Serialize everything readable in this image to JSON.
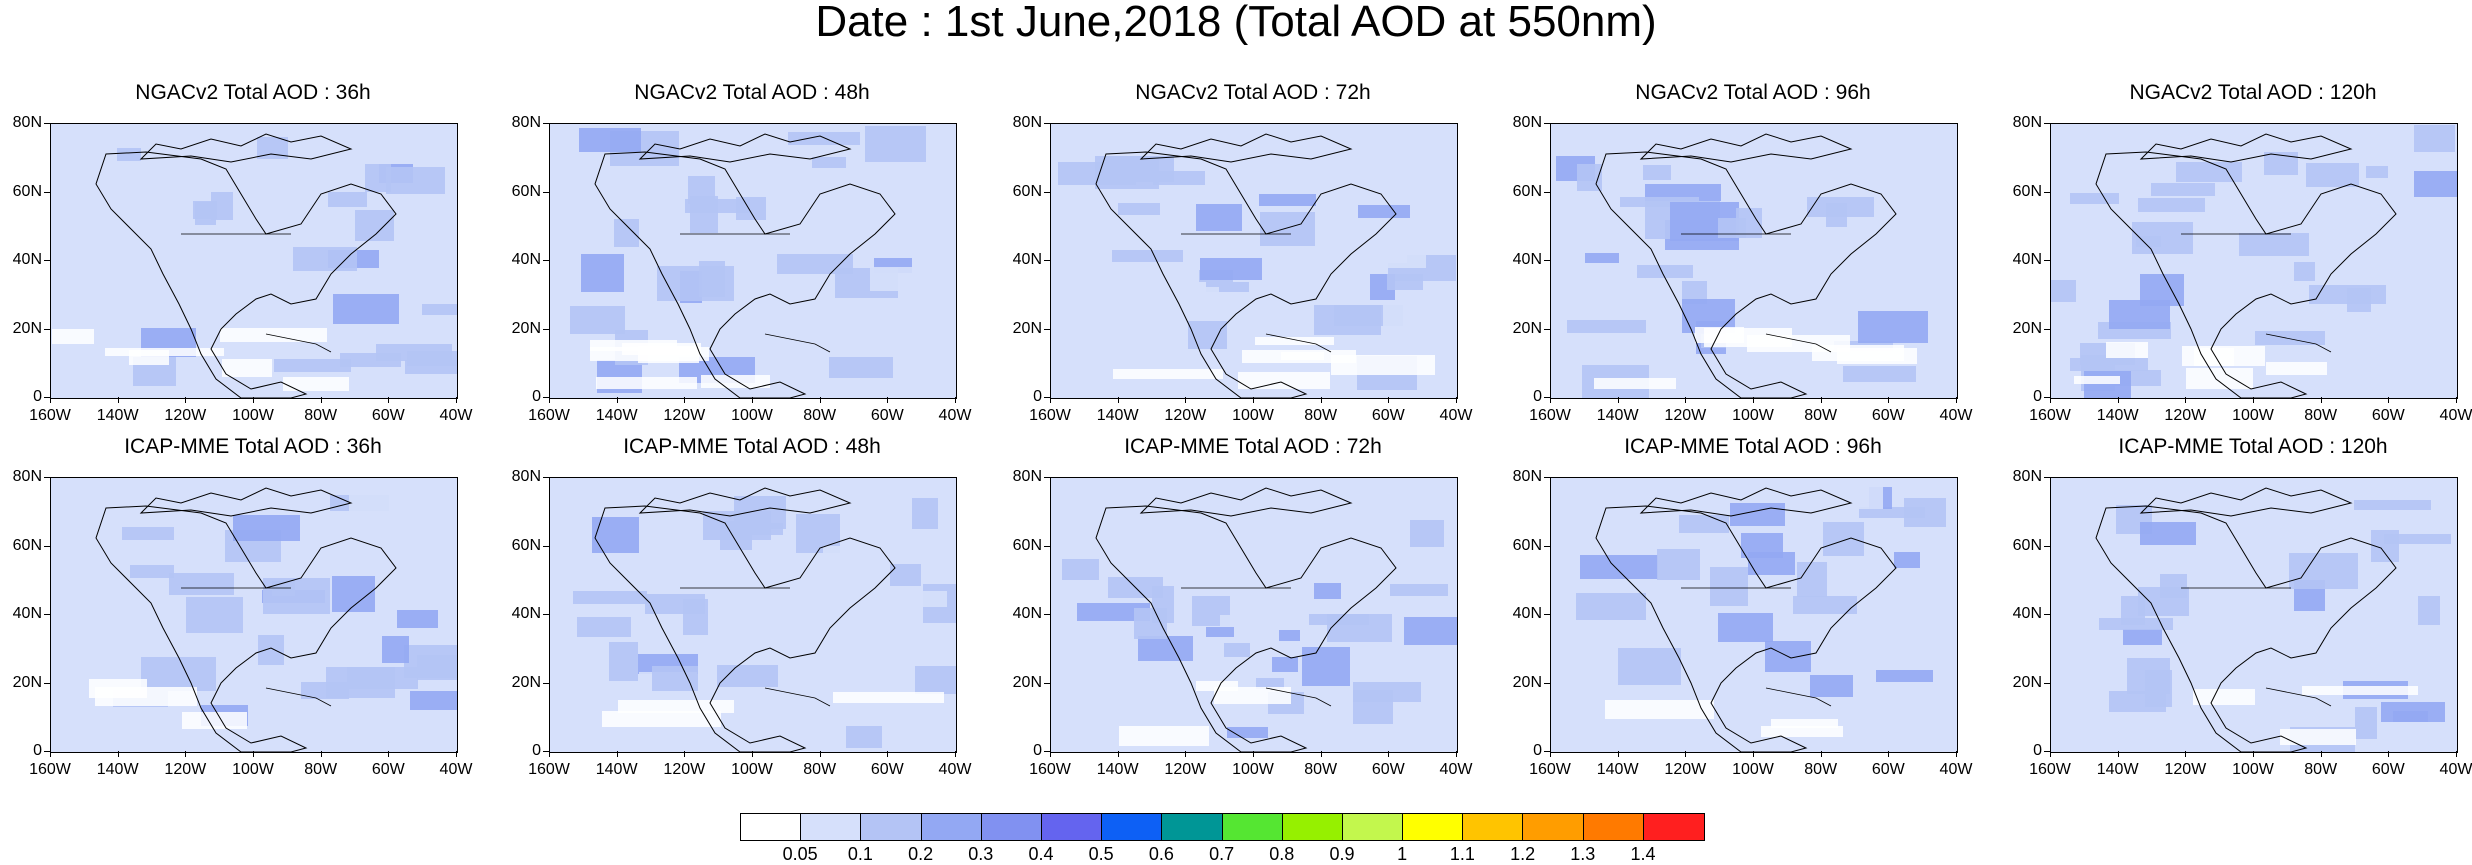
{
  "title": "Date : 1st June,2018 (Total AOD at 550nm)",
  "panels": [
    {
      "title": "NGACv2 Total AOD : 36h"
    },
    {
      "title": "NGACv2 Total AOD : 48h"
    },
    {
      "title": "NGACv2 Total AOD : 72h"
    },
    {
      "title": "NGACv2 Total AOD : 96h"
    },
    {
      "title": "NGACv2 Total AOD : 120h"
    },
    {
      "title": "ICAP-MME Total AOD : 36h"
    },
    {
      "title": "ICAP-MME Total AOD : 48h"
    },
    {
      "title": "ICAP-MME Total AOD : 72h"
    },
    {
      "title": "ICAP-MME Total AOD : 96h"
    },
    {
      "title": "ICAP-MME Total AOD : 120h"
    }
  ],
  "axes": {
    "lat_labels": [
      "80N",
      "60N",
      "40N",
      "20N",
      "0"
    ],
    "lon_labels": [
      "160W",
      "140W",
      "120W",
      "100W",
      "80W",
      "60W",
      "40W"
    ]
  },
  "colorbar": {
    "labels": [
      "0.05",
      "0.1",
      "0.2",
      "0.3",
      "0.4",
      "0.5",
      "0.6",
      "0.7",
      "0.8",
      "0.9",
      "1",
      "1.1",
      "1.2",
      "1.3",
      "1.4"
    ],
    "colors": [
      "#ffffff",
      "#d6e0fb",
      "#b4c4f5",
      "#93a8f3",
      "#8191f1",
      "#6464ef",
      "#0d60f5",
      "#009696",
      "#55e632",
      "#96f000",
      "#c3f74d",
      "#ffff00",
      "#ffc400",
      "#ff9d00",
      "#ff7a00",
      "#ff1f1f"
    ]
  }
}
